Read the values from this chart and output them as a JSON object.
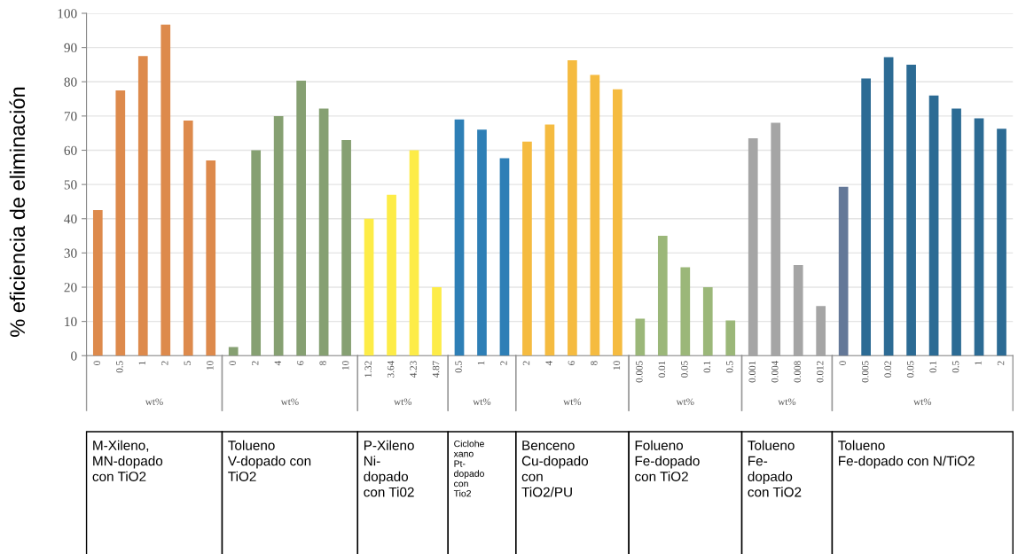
{
  "chart_data": {
    "type": "bar",
    "ylabel": "% eficiencia de eliminación",
    "grid": "y",
    "ylim": [
      0,
      100
    ],
    "yticks": [
      0,
      10,
      20,
      30,
      40,
      50,
      60,
      70,
      80,
      90,
      100
    ],
    "categories": [
      "0",
      "0.5",
      "1",
      "2",
      "5",
      "10",
      "0",
      "2",
      "4",
      "6",
      "8",
      "10",
      "1.32",
      "3.64",
      "4.23",
      "4.87",
      "0.5",
      "1",
      "2",
      "2",
      "4",
      "6",
      "8",
      "10",
      "0.005",
      "0.01",
      "0.05",
      "0.1",
      "0.5",
      "0.001",
      "0.004",
      "0.008",
      "0.012",
      "0",
      "0.005",
      "0.02",
      "0.05",
      "0.1",
      "0.5",
      "1",
      "2"
    ],
    "series": [
      {
        "colors": [
          "#dd8a4c",
          "#dd8a4c",
          "#dd8a4c",
          "#dd8a4c",
          "#dd8a4c",
          "#dd8a4c",
          null,
          null,
          null,
          null,
          null,
          null,
          null,
          null,
          null,
          null,
          null,
          null,
          null,
          null,
          null,
          null,
          null,
          null,
          null,
          null,
          null,
          null,
          null,
          null,
          null,
          null,
          null,
          null,
          null,
          null,
          null,
          null,
          null,
          null,
          null
        ],
        "values": [
          42.5,
          77.5,
          87.5,
          96.7,
          68.7,
          57,
          null,
          null,
          null,
          null,
          null,
          null,
          null,
          null,
          null,
          null,
          null,
          null,
          null,
          null,
          null,
          null,
          null,
          null,
          null,
          null,
          null,
          null,
          null,
          null,
          null,
          null,
          null,
          null,
          null,
          null,
          null,
          null,
          null,
          null,
          null
        ]
      },
      {
        "colors": [
          null,
          null,
          null,
          null,
          null,
          null,
          "#86a072",
          "#86a072",
          "#86a072",
          "#86a072",
          "#86a072",
          "#86a072",
          null,
          null,
          null,
          null,
          null,
          null,
          null,
          null,
          null,
          null,
          null,
          null,
          null,
          null,
          null,
          null,
          null,
          null,
          null,
          null,
          null,
          null,
          null,
          null,
          null,
          null,
          null,
          null,
          null
        ],
        "values": [
          null,
          null,
          null,
          null,
          null,
          null,
          2.5,
          60,
          70,
          80.3,
          72.2,
          63,
          null,
          null,
          null,
          null,
          null,
          null,
          null,
          null,
          null,
          null,
          null,
          null,
          null,
          null,
          null,
          null,
          null,
          null,
          null,
          null,
          null,
          null,
          null,
          null,
          null,
          null,
          null,
          null,
          null
        ]
      },
      {
        "colors": [
          null,
          null,
          null,
          null,
          null,
          null,
          null,
          null,
          null,
          null,
          null,
          null,
          "#fdec47",
          "#fdec47",
          "#fdec47",
          "#fdec47",
          null,
          null,
          null,
          null,
          null,
          null,
          null,
          null,
          null,
          null,
          null,
          null,
          null,
          null,
          null,
          null,
          null,
          null,
          null,
          null,
          null,
          null,
          null,
          null,
          null
        ],
        "values": [
          null,
          null,
          null,
          null,
          null,
          null,
          null,
          null,
          null,
          null,
          null,
          null,
          40,
          47,
          60,
          20,
          null,
          null,
          null,
          null,
          null,
          null,
          null,
          null,
          null,
          null,
          null,
          null,
          null,
          null,
          null,
          null,
          null,
          null,
          null,
          null,
          null,
          null,
          null,
          null,
          null
        ]
      },
      {
        "colors": [
          null,
          null,
          null,
          null,
          null,
          null,
          null,
          null,
          null,
          null,
          null,
          null,
          null,
          null,
          null,
          null,
          "#2e7fb6",
          "#2e7fb6",
          "#2e7fb6",
          null,
          null,
          null,
          null,
          null,
          null,
          null,
          null,
          null,
          null,
          null,
          null,
          null,
          null,
          null,
          null,
          null,
          null,
          null,
          null,
          null,
          null
        ],
        "values": [
          null,
          null,
          null,
          null,
          null,
          null,
          null,
          null,
          null,
          null,
          null,
          null,
          null,
          null,
          null,
          null,
          69,
          66,
          57.7,
          null,
          null,
          null,
          null,
          null,
          null,
          null,
          null,
          null,
          null,
          null,
          null,
          null,
          null,
          null,
          null,
          null,
          null,
          null,
          null,
          null,
          null
        ]
      },
      {
        "colors": [
          null,
          null,
          null,
          null,
          null,
          null,
          null,
          null,
          null,
          null,
          null,
          null,
          null,
          null,
          null,
          null,
          null,
          null,
          null,
          "#f5bb40",
          "#f5bb40",
          "#f5bb40",
          "#f5bb40",
          "#f5bb40",
          null,
          null,
          null,
          null,
          null,
          null,
          null,
          null,
          null,
          null,
          null,
          null,
          null,
          null,
          null,
          null,
          null
        ],
        "values": [
          null,
          null,
          null,
          null,
          null,
          null,
          null,
          null,
          null,
          null,
          null,
          null,
          null,
          null,
          null,
          null,
          null,
          null,
          null,
          62.5,
          67.5,
          86.3,
          82,
          77.8,
          null,
          null,
          null,
          null,
          null,
          null,
          null,
          null,
          null,
          null,
          null,
          null,
          null,
          null,
          null,
          null,
          null
        ]
      },
      {
        "colors": [
          null,
          null,
          null,
          null,
          null,
          null,
          null,
          null,
          null,
          null,
          null,
          null,
          null,
          null,
          null,
          null,
          null,
          null,
          null,
          null,
          null,
          null,
          null,
          null,
          "#9bb779",
          "#9bb779",
          "#9bb779",
          "#9bb779",
          "#9bb779",
          null,
          null,
          null,
          null,
          null,
          null,
          null,
          null,
          null,
          null,
          null,
          null
        ],
        "values": [
          null,
          null,
          null,
          null,
          null,
          null,
          null,
          null,
          null,
          null,
          null,
          null,
          null,
          null,
          null,
          null,
          null,
          null,
          null,
          null,
          null,
          null,
          null,
          null,
          10.8,
          35,
          25.8,
          20,
          10.3,
          null,
          null,
          null,
          null,
          null,
          null,
          null,
          null,
          null,
          null,
          null,
          null
        ]
      },
      {
        "colors": [
          null,
          null,
          null,
          null,
          null,
          null,
          null,
          null,
          null,
          null,
          null,
          null,
          null,
          null,
          null,
          null,
          null,
          null,
          null,
          null,
          null,
          null,
          null,
          null,
          null,
          null,
          null,
          null,
          null,
          "#a5a5a5",
          "#a5a5a5",
          "#a5a5a5",
          "#a5a5a5",
          null,
          null,
          null,
          null,
          null,
          null,
          null,
          null
        ],
        "values": [
          null,
          null,
          null,
          null,
          null,
          null,
          null,
          null,
          null,
          null,
          null,
          null,
          null,
          null,
          null,
          null,
          null,
          null,
          null,
          null,
          null,
          null,
          null,
          null,
          null,
          null,
          null,
          null,
          null,
          63.5,
          68,
          26.5,
          14.5,
          null,
          null,
          null,
          null,
          null,
          null,
          null,
          null
        ]
      },
      {
        "colors": [
          null,
          null,
          null,
          null,
          null,
          null,
          null,
          null,
          null,
          null,
          null,
          null,
          null,
          null,
          null,
          null,
          null,
          null,
          null,
          null,
          null,
          null,
          null,
          null,
          null,
          null,
          null,
          null,
          null,
          null,
          null,
          null,
          null,
          "#647898",
          "#2c6b94",
          "#2c6b94",
          "#2c6b94",
          "#2c6b94",
          "#2c6b94",
          "#2c6b94",
          "#2c6b94"
        ],
        "values": [
          null,
          null,
          null,
          null,
          null,
          null,
          null,
          null,
          null,
          null,
          null,
          null,
          null,
          null,
          null,
          null,
          null,
          null,
          null,
          null,
          null,
          null,
          null,
          null,
          null,
          null,
          null,
          null,
          null,
          null,
          null,
          null,
          null,
          49.3,
          81,
          87.2,
          85,
          76,
          72.2,
          69.3,
          66.3
        ]
      }
    ],
    "annotations": [
      "wt%",
      "M-Xileno,\nMN-dopado\ncon TiO2",
      "wt%",
      "Tolueno\nV-dopado con\nTiO2",
      "wt%",
      "P-Xileno\nNi-\ndopado\ncon Ti02",
      "wt%",
      "Ciclohe\nxano\nPt-\ndopado\ncon\nTio2",
      "wt%",
      "Benceno\nCu-dopado\ncon\nTiO2/PU",
      "wt%",
      "Folueno\nFe-dopado\ncon TiO2",
      "wt%",
      "Tolueno\nFe-\ndopado\ncon TiO2",
      "wt%",
      "Tolueno\nFe-dopado con N/TiO2"
    ]
  }
}
